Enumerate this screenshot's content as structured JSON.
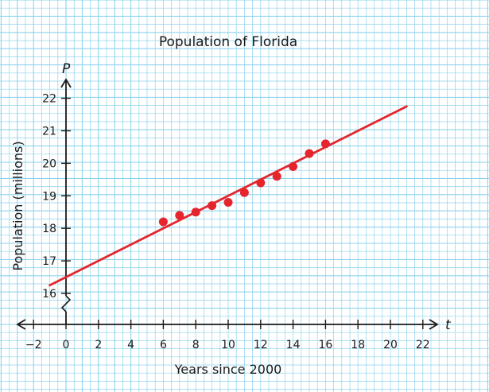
{
  "chart_data": {
    "type": "scatter",
    "title": "Population of Florida",
    "xlabel": "Years since 2000",
    "ylabel": "Population (millions)",
    "x_var": "t",
    "y_var": "P",
    "xlim": [
      -2,
      22
    ],
    "ylim": [
      16,
      22
    ],
    "x_ticks": [
      -2,
      0,
      2,
      4,
      6,
      8,
      10,
      12,
      14,
      16,
      18,
      20,
      22
    ],
    "x_tick_labels": [
      "−2",
      "0",
      "2",
      "4",
      "6",
      "8",
      "10",
      "12",
      "14",
      "16",
      "18",
      "20",
      "22"
    ],
    "y_ticks": [
      16,
      17,
      18,
      19,
      20,
      21,
      22
    ],
    "y_tick_labels": [
      "16",
      "17",
      "18",
      "19",
      "20",
      "21",
      "22"
    ],
    "y_axis_break": true,
    "grid": true,
    "points": [
      {
        "x": 6,
        "y": 18.2
      },
      {
        "x": 7,
        "y": 18.4
      },
      {
        "x": 8,
        "y": 18.5
      },
      {
        "x": 9,
        "y": 18.7
      },
      {
        "x": 10,
        "y": 18.8
      },
      {
        "x": 11,
        "y": 19.1
      },
      {
        "x": 12,
        "y": 19.4
      },
      {
        "x": 13,
        "y": 19.6
      },
      {
        "x": 14,
        "y": 19.9
      },
      {
        "x": 15,
        "y": 20.3
      },
      {
        "x": 16,
        "y": 20.6
      }
    ],
    "trend_line": {
      "x_start": -1,
      "y_start": 16.25,
      "x_end": 21,
      "y_end": 21.75
    },
    "colors": {
      "grid_line": "#8fd3ee",
      "background": "#ffffff",
      "data": "#e5252e",
      "axis": "#1a1a1a"
    }
  }
}
